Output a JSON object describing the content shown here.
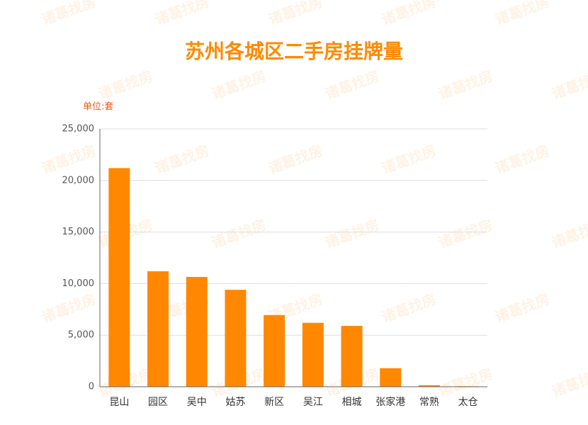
{
  "chart_data": {
    "type": "bar",
    "title": "苏州各城区二手房挂牌量",
    "y_label": "单位:套",
    "watermark": "诸葛找房",
    "categories": [
      "昆山",
      "园区",
      "吴中",
      "姑苏",
      "新区",
      "吴江",
      "相城",
      "张家港",
      "常熟",
      "太仓"
    ],
    "values": [
      21200,
      11200,
      10650,
      9400,
      6950,
      6200,
      5900,
      1800,
      150,
      50
    ],
    "color": "#ff8800",
    "ylim": [
      0,
      25000
    ],
    "yticks": [
      0,
      {
        "value": 5000,
        "label": "5,000"
      },
      {
        "value": 10000,
        "label": "10,000"
      },
      {
        "value": 15000,
        "label": "15,000"
      },
      {
        "value": 20000,
        "label": "20,000"
      },
      {
        "value": 25000,
        "label": "25,000"
      }
    ],
    "grid": true
  }
}
